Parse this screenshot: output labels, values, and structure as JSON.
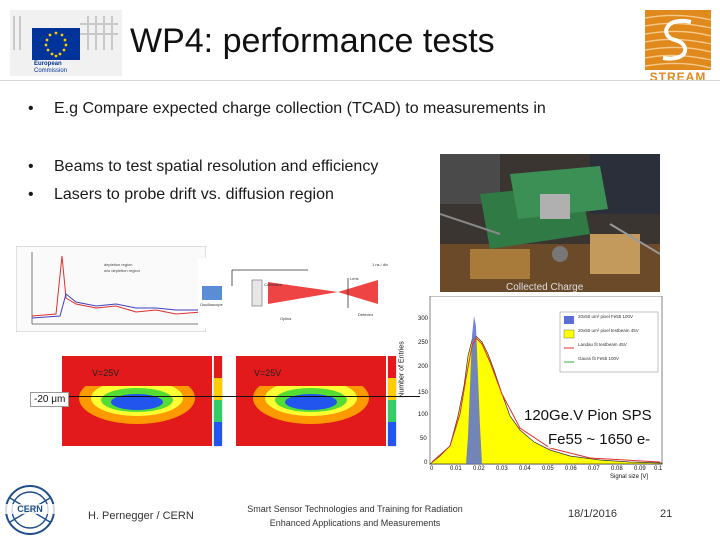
{
  "slide": {
    "title": "WP4: performance tests",
    "bullets": [
      "E.g Compare expected charge collection (TCAD) to measurements in",
      "Beams to test spatial resolution and efficiency",
      "Lasers to probe drift vs. diffusion region"
    ]
  },
  "logos": {
    "eu_line1": "European",
    "eu_line2": "Commission",
    "stream": "STREAM",
    "cern": "CERN"
  },
  "figures": {
    "tcad_legend": [
      "depletion region",
      "w/o depletion region"
    ],
    "setup_labels": [
      "Lens",
      "Oscilloscope",
      "Collimator",
      "Optics",
      "Detector",
      "1 ns / div"
    ],
    "map_left": "V=25V",
    "map_right": "V=25V",
    "depth_mark": "-20 μm",
    "photo_label": "Collected Charge"
  },
  "histogram": {
    "ylabel": "Number of Entries",
    "xlabel": "Signal size [V]",
    "yticks": [
      "0",
      "50",
      "100",
      "150",
      "200",
      "250",
      "300"
    ],
    "xticks": [
      "0",
      "0.01",
      "0.02",
      "0.03",
      "0.04",
      "0.05",
      "0.06",
      "0.07",
      "0.08",
      "0.09",
      "0.1"
    ],
    "legend": [
      "20x50 um² pixel Fe55 100V",
      "20x50 um² pixel testbeam 45V",
      "Landau fit testbeam 45V",
      "Gauss fit Fe55 100V"
    ],
    "caption1": "120Ge.V Pion SPS",
    "caption2": "Fe55 ~ 1650 e-"
  },
  "footer": {
    "author": "H. Pernegger / CERN",
    "project_line1": "Smart Sensor Technologies and Training for Radiation",
    "project_line2": "Enhanced Applications and Measurements",
    "date": "18/1/2016",
    "page": "21"
  },
  "colors": {
    "eu_blue": "#003399",
    "eu_gold": "#ffcc00",
    "stream_orange": "#e08a1e",
    "cern_blue": "#1f4e8c",
    "hist_yellow": "#ffff00",
    "hist_blue": "#5a6fd6"
  }
}
